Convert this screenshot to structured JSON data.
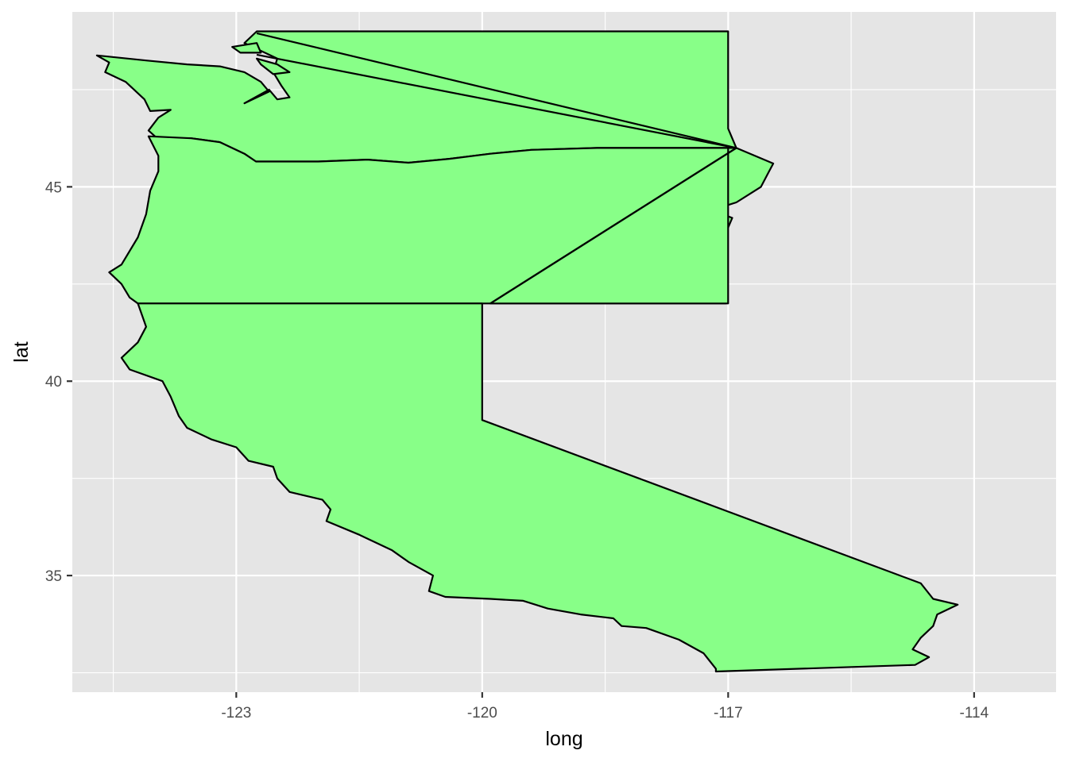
{
  "chart_data": {
    "type": "map",
    "xlabel": "long",
    "ylabel": "lat",
    "xlim": [
      -125.0,
      -113.0
    ],
    "ylim": [
      32.0,
      49.5
    ],
    "x_ticks": [
      -123,
      -120,
      -117,
      -114
    ],
    "y_ticks": [
      35,
      40,
      45
    ],
    "x_tick_labels": [
      "-123",
      "-120",
      "-117",
      "-114"
    ],
    "y_tick_labels": [
      "35",
      "40",
      "45"
    ],
    "grid": true,
    "panel_background": "#e5e5e5",
    "grid_color": "#ffffff",
    "fill_color": "#88ff88",
    "outline_color": "#000000",
    "regions": [
      {
        "id": "washington",
        "points": [
          [
            -124.7,
            48.38
          ],
          [
            -124.55,
            48.2
          ],
          [
            -124.6,
            47.95
          ],
          [
            -124.35,
            47.7
          ],
          [
            -124.12,
            47.25
          ],
          [
            -124.05,
            46.95
          ],
          [
            -123.8,
            46.98
          ],
          [
            -123.95,
            46.78
          ],
          [
            -124.07,
            46.45
          ],
          [
            -123.95,
            46.22
          ],
          [
            -123.55,
            46.25
          ],
          [
            -123.2,
            46.15
          ],
          [
            -122.9,
            45.85
          ],
          [
            -122.76,
            45.65
          ],
          [
            -122.0,
            45.65
          ],
          [
            -121.4,
            45.7
          ],
          [
            -120.9,
            45.62
          ],
          [
            -120.4,
            45.72
          ],
          [
            -119.9,
            45.85
          ],
          [
            -119.4,
            45.95
          ],
          [
            -118.6,
            46.0
          ],
          [
            -116.9,
            46.0
          ],
          [
            -117.0,
            46.5
          ],
          [
            -117.0,
            47.8
          ],
          [
            -117.0,
            49.0
          ],
          [
            -122.75,
            49.0
          ],
          [
            -122.9,
            48.7
          ],
          [
            -122.5,
            48.3
          ],
          [
            -122.55,
            47.95
          ],
          [
            -122.45,
            47.6
          ],
          [
            -122.35,
            47.3
          ],
          [
            -122.5,
            47.25
          ],
          [
            -122.6,
            47.5
          ],
          [
            -122.9,
            47.15
          ],
          [
            -122.6,
            47.45
          ],
          [
            -122.7,
            47.7
          ],
          [
            -122.9,
            47.95
          ],
          [
            -123.2,
            48.1
          ],
          [
            -123.6,
            48.15
          ],
          [
            -124.1,
            48.25
          ]
        ]
      },
      {
        "id": "oregon",
        "points": [
          [
            -124.07,
            46.3
          ],
          [
            -123.95,
            45.8
          ],
          [
            -123.95,
            45.4
          ],
          [
            -124.05,
            44.9
          ],
          [
            -124.1,
            44.3
          ],
          [
            -124.2,
            43.7
          ],
          [
            -124.4,
            43.0
          ],
          [
            -124.55,
            42.8
          ],
          [
            -124.4,
            42.5
          ],
          [
            -124.3,
            42.15
          ],
          [
            -124.2,
            42.0
          ],
          [
            -121.5,
            42.0
          ],
          [
            -119.9,
            42.0
          ],
          [
            -117.03,
            42.0
          ],
          [
            -117.03,
            43.8
          ],
          [
            -116.95,
            44.2
          ],
          [
            -117.2,
            44.4
          ],
          [
            -116.9,
            44.6
          ],
          [
            -116.6,
            45.0
          ],
          [
            -116.5,
            45.4
          ],
          [
            -116.45,
            45.6
          ],
          [
            -116.9,
            46.0
          ],
          [
            -118.6,
            46.0
          ],
          [
            -119.4,
            45.95
          ],
          [
            -119.9,
            45.85
          ],
          [
            -120.4,
            45.72
          ],
          [
            -120.9,
            45.62
          ],
          [
            -121.4,
            45.7
          ],
          [
            -122.0,
            45.65
          ],
          [
            -122.76,
            45.65
          ],
          [
            -122.9,
            45.85
          ],
          [
            -123.2,
            46.15
          ],
          [
            -123.55,
            46.25
          ]
        ]
      },
      {
        "id": "california",
        "points": [
          [
            -124.2,
            42.0
          ],
          [
            -124.15,
            41.7
          ],
          [
            -124.1,
            41.4
          ],
          [
            -124.2,
            41.0
          ],
          [
            -124.4,
            40.6
          ],
          [
            -124.3,
            40.3
          ],
          [
            -123.9,
            40.0
          ],
          [
            -123.8,
            39.6
          ],
          [
            -123.7,
            39.1
          ],
          [
            -123.6,
            38.8
          ],
          [
            -123.3,
            38.5
          ],
          [
            -123.0,
            38.3
          ],
          [
            -122.85,
            37.95
          ],
          [
            -122.55,
            37.8
          ],
          [
            -122.5,
            37.5
          ],
          [
            -122.35,
            37.15
          ],
          [
            -121.95,
            36.95
          ],
          [
            -121.85,
            36.7
          ],
          [
            -121.9,
            36.4
          ],
          [
            -121.5,
            36.05
          ],
          [
            -121.1,
            35.65
          ],
          [
            -120.9,
            35.35
          ],
          [
            -120.6,
            35.0
          ],
          [
            -120.65,
            34.6
          ],
          [
            -120.45,
            34.45
          ],
          [
            -119.9,
            34.4
          ],
          [
            -119.5,
            34.35
          ],
          [
            -119.2,
            34.15
          ],
          [
            -118.8,
            34.0
          ],
          [
            -118.4,
            33.9
          ],
          [
            -118.3,
            33.7
          ],
          [
            -118.0,
            33.65
          ],
          [
            -117.6,
            33.35
          ],
          [
            -117.3,
            33.0
          ],
          [
            -117.15,
            32.6
          ],
          [
            -117.15,
            32.53
          ],
          [
            -114.72,
            32.7
          ],
          [
            -114.55,
            32.9
          ],
          [
            -114.75,
            33.1
          ],
          [
            -114.65,
            33.4
          ],
          [
            -114.5,
            33.7
          ],
          [
            -114.45,
            34.0
          ],
          [
            -114.2,
            34.25
          ],
          [
            -114.5,
            34.4
          ],
          [
            -114.65,
            34.8
          ],
          [
            -120.0,
            39.0
          ],
          [
            -120.0,
            42.0
          ]
        ]
      },
      {
        "id": "idaho-panhandle",
        "points": [
          [
            -119.9,
            42.0
          ],
          [
            -117.0,
            42.0
          ],
          [
            -117.0,
            46.0
          ],
          [
            -116.9,
            46.0
          ]
        ]
      },
      {
        "id": "san-juan-islands",
        "points": [
          [
            -123.05,
            48.6
          ],
          [
            -122.75,
            48.7
          ],
          [
            -122.7,
            48.45
          ],
          [
            -122.95,
            48.45
          ]
        ]
      },
      {
        "id": "whidbey-island",
        "points": [
          [
            -122.75,
            48.3
          ],
          [
            -122.5,
            48.15
          ],
          [
            -122.35,
            47.95
          ],
          [
            -122.55,
            47.9
          ],
          [
            -122.7,
            48.15
          ]
        ]
      }
    ],
    "lines": [
      {
        "id": "state-line-upper",
        "points": [
          [
            -122.75,
            48.95
          ],
          [
            -116.9,
            46.0
          ]
        ]
      },
      {
        "id": "state-line-lower",
        "points": [
          [
            -122.75,
            48.4
          ],
          [
            -116.9,
            46.0
          ]
        ]
      },
      {
        "id": "diagonal-border",
        "points": [
          [
            -116.9,
            46.0
          ],
          [
            -119.9,
            42.0
          ]
        ]
      }
    ]
  }
}
